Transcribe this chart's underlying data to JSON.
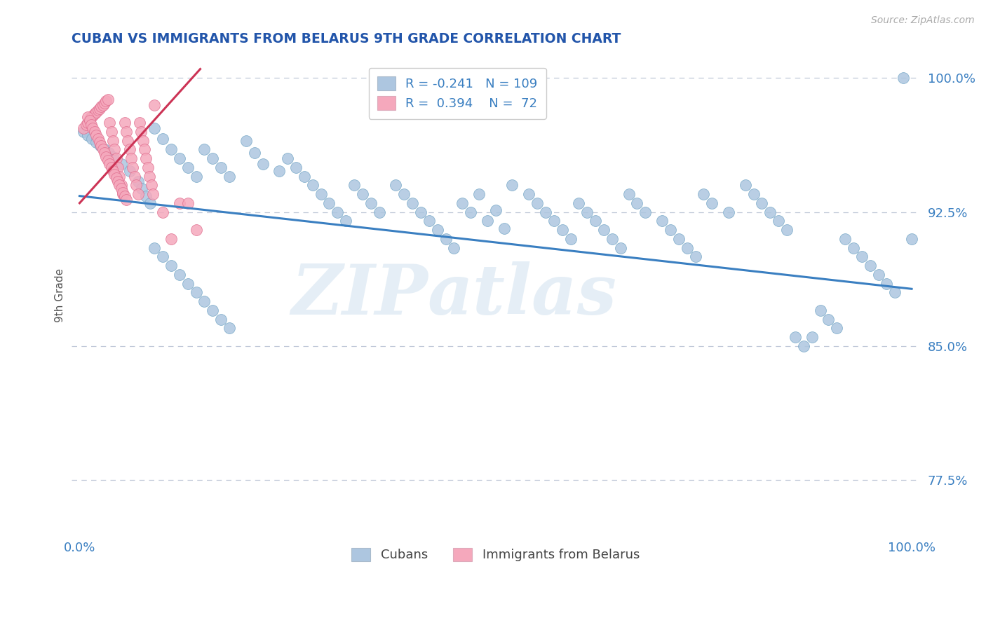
{
  "title": "CUBAN VS IMMIGRANTS FROM BELARUS 9TH GRADE CORRELATION CHART",
  "source_text": "Source: ZipAtlas.com",
  "ylabel": "9th Grade",
  "xlim": [
    -0.01,
    1.01
  ],
  "ylim": [
    0.745,
    1.012
  ],
  "yticks": [
    0.775,
    0.85,
    0.925,
    1.0
  ],
  "ytick_labels": [
    "77.5%",
    "85.0%",
    "92.5%",
    "100.0%"
  ],
  "xtick_positions": [
    0.0,
    1.0
  ],
  "xtick_labels": [
    "0.0%",
    "100.0%"
  ],
  "legend_r_blue": "-0.241",
  "legend_n_blue": "109",
  "legend_r_pink": "0.394",
  "legend_n_pink": "72",
  "blue_color": "#adc6e0",
  "pink_color": "#f5a8bc",
  "blue_edge_color": "#7aaac8",
  "pink_edge_color": "#e07090",
  "trend_blue_color": "#3a7fc1",
  "trend_pink_color": "#cc3355",
  "title_color": "#2255aa",
  "axis_label_color": "#3a7fc1",
  "tick_color": "#3a7fc1",
  "ylabel_color": "#555555",
  "watermark_color": "#d5e4f0",
  "background_color": "#ffffff",
  "grid_color": "#c0c8d8",
  "blue_x": [
    0.005,
    0.01,
    0.015,
    0.02,
    0.025,
    0.03,
    0.035,
    0.04,
    0.05,
    0.06,
    0.07,
    0.075,
    0.08,
    0.085,
    0.09,
    0.1,
    0.11,
    0.12,
    0.13,
    0.14,
    0.15,
    0.16,
    0.17,
    0.18,
    0.2,
    0.21,
    0.22,
    0.24,
    0.25,
    0.26,
    0.27,
    0.28,
    0.29,
    0.3,
    0.31,
    0.32,
    0.33,
    0.34,
    0.35,
    0.36,
    0.38,
    0.39,
    0.4,
    0.41,
    0.42,
    0.43,
    0.44,
    0.45,
    0.46,
    0.47,
    0.48,
    0.49,
    0.5,
    0.51,
    0.52,
    0.54,
    0.55,
    0.56,
    0.57,
    0.58,
    0.59,
    0.6,
    0.61,
    0.62,
    0.63,
    0.64,
    0.65,
    0.66,
    0.67,
    0.68,
    0.7,
    0.71,
    0.72,
    0.73,
    0.74,
    0.75,
    0.76,
    0.78,
    0.8,
    0.81,
    0.82,
    0.83,
    0.84,
    0.85,
    0.86,
    0.87,
    0.88,
    0.89,
    0.9,
    0.91,
    0.92,
    0.93,
    0.94,
    0.95,
    0.96,
    0.97,
    0.98,
    0.99,
    1.0,
    0.09,
    0.1,
    0.11,
    0.12,
    0.13,
    0.14,
    0.15,
    0.16,
    0.17,
    0.18
  ],
  "blue_y": [
    0.97,
    0.968,
    0.966,
    0.964,
    0.962,
    0.96,
    0.958,
    0.956,
    0.952,
    0.948,
    0.942,
    0.938,
    0.934,
    0.93,
    0.972,
    0.966,
    0.96,
    0.955,
    0.95,
    0.945,
    0.96,
    0.955,
    0.95,
    0.945,
    0.965,
    0.958,
    0.952,
    0.948,
    0.955,
    0.95,
    0.945,
    0.94,
    0.935,
    0.93,
    0.925,
    0.92,
    0.94,
    0.935,
    0.93,
    0.925,
    0.94,
    0.935,
    0.93,
    0.925,
    0.92,
    0.915,
    0.91,
    0.905,
    0.93,
    0.925,
    0.935,
    0.92,
    0.926,
    0.916,
    0.94,
    0.935,
    0.93,
    0.925,
    0.92,
    0.915,
    0.91,
    0.93,
    0.925,
    0.92,
    0.915,
    0.91,
    0.905,
    0.935,
    0.93,
    0.925,
    0.92,
    0.915,
    0.91,
    0.905,
    0.9,
    0.935,
    0.93,
    0.925,
    0.94,
    0.935,
    0.93,
    0.925,
    0.92,
    0.915,
    0.855,
    0.85,
    0.855,
    0.87,
    0.865,
    0.86,
    0.91,
    0.905,
    0.9,
    0.895,
    0.89,
    0.885,
    0.88,
    1.0,
    0.91,
    0.905,
    0.9,
    0.895,
    0.89,
    0.885,
    0.88,
    0.875,
    0.87,
    0.865,
    0.86
  ],
  "pink_x": [
    0.005,
    0.008,
    0.01,
    0.012,
    0.014,
    0.016,
    0.018,
    0.02,
    0.022,
    0.024,
    0.026,
    0.028,
    0.03,
    0.032,
    0.034,
    0.036,
    0.038,
    0.04,
    0.042,
    0.044,
    0.046,
    0.048,
    0.05,
    0.052,
    0.054,
    0.056,
    0.058,
    0.06,
    0.062,
    0.064,
    0.066,
    0.068,
    0.07,
    0.072,
    0.074,
    0.076,
    0.078,
    0.08,
    0.082,
    0.084,
    0.086,
    0.088,
    0.09,
    0.01,
    0.012,
    0.014,
    0.016,
    0.018,
    0.02,
    0.022,
    0.024,
    0.026,
    0.028,
    0.03,
    0.032,
    0.034,
    0.036,
    0.038,
    0.04,
    0.042,
    0.044,
    0.046,
    0.048,
    0.05,
    0.052,
    0.054,
    0.056,
    0.1,
    0.11,
    0.12,
    0.13,
    0.14
  ],
  "pink_y": [
    0.972,
    0.974,
    0.975,
    0.977,
    0.978,
    0.979,
    0.98,
    0.981,
    0.982,
    0.983,
    0.984,
    0.985,
    0.986,
    0.987,
    0.988,
    0.975,
    0.97,
    0.965,
    0.96,
    0.955,
    0.95,
    0.945,
    0.94,
    0.935,
    0.975,
    0.97,
    0.965,
    0.96,
    0.955,
    0.95,
    0.945,
    0.94,
    0.935,
    0.975,
    0.97,
    0.965,
    0.96,
    0.955,
    0.95,
    0.945,
    0.94,
    0.935,
    0.985,
    0.978,
    0.976,
    0.974,
    0.972,
    0.97,
    0.968,
    0.966,
    0.964,
    0.962,
    0.96,
    0.958,
    0.956,
    0.954,
    0.952,
    0.95,
    0.948,
    0.946,
    0.944,
    0.942,
    0.94,
    0.938,
    0.936,
    0.934,
    0.932,
    0.925,
    0.91,
    0.93,
    0.93,
    0.915
  ],
  "blue_trend_x0": 0.0,
  "blue_trend_x1": 1.0,
  "blue_trend_y0": 0.934,
  "blue_trend_y1": 0.882,
  "pink_trend_x0": 0.0,
  "pink_trend_x1": 0.145,
  "pink_trend_y0": 0.93,
  "pink_trend_y1": 1.005
}
